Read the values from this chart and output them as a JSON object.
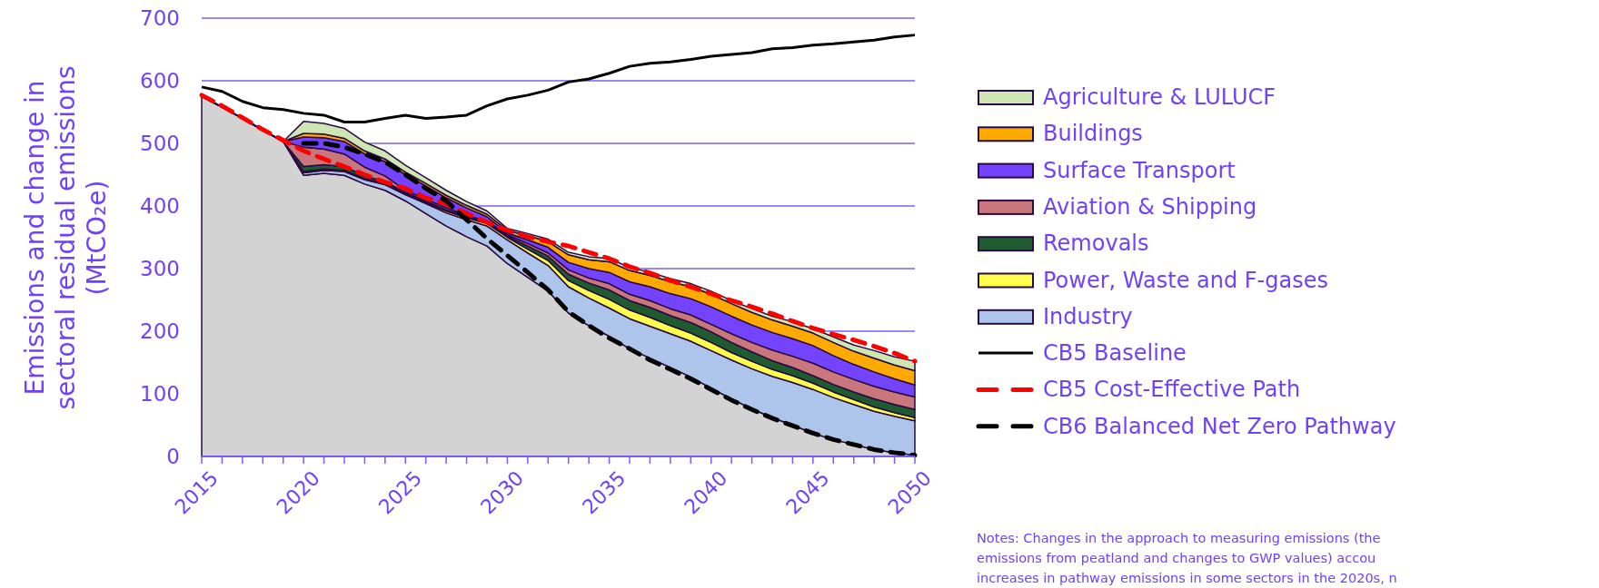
{
  "chart_data": {
    "type": "area",
    "stacked": true,
    "ylabel": "Emissions and change in\nsectoral residual emissions\n(MtCO₂e)",
    "x": [
      2015,
      2016,
      2017,
      2018,
      2019,
      2020,
      2021,
      2022,
      2023,
      2024,
      2025,
      2026,
      2027,
      2028,
      2029,
      2030,
      2031,
      2032,
      2033,
      2034,
      2035,
      2036,
      2037,
      2038,
      2039,
      2040,
      2041,
      2042,
      2043,
      2044,
      2045,
      2046,
      2047,
      2048,
      2049,
      2050
    ],
    "series": [
      {
        "color": "#d3d3d3",
        "values": [
          575,
          558,
          540,
          521,
          503,
          449,
          452,
          449,
          435,
          425,
          408,
          388,
          368,
          351,
          336,
          308,
          286,
          264,
          229,
          209,
          192,
          172,
          157,
          142,
          127,
          109,
          92,
          76,
          62,
          50,
          37,
          27,
          19,
          11,
          6,
          2
        ]
      },
      {
        "name": "Industry",
        "color": "#adc5eb",
        "values": [
          0,
          0,
          0,
          0,
          0,
          4,
          5,
          6,
          7,
          9,
          10,
          16,
          21,
          27,
          32,
          38,
          39,
          41,
          42,
          44,
          45,
          48,
          51,
          54,
          57,
          60,
          62,
          64,
          66,
          68,
          70,
          67,
          64,
          61,
          58,
          55
        ]
      },
      {
        "name": "Power, Waste and F-gases",
        "color": "#ffff4d",
        "values": [
          0,
          0,
          0,
          0,
          0,
          2,
          2,
          2,
          2,
          2,
          2,
          2,
          3,
          3,
          4,
          4,
          6,
          8,
          10,
          12,
          14,
          14,
          14,
          13,
          13,
          13,
          12,
          12,
          11,
          11,
          10,
          9,
          8,
          7,
          6,
          5
        ]
      },
      {
        "name": "Removals",
        "color": "#1e5b30",
        "values": [
          0,
          0,
          0,
          0,
          0,
          8,
          7,
          6,
          4,
          3,
          2,
          2,
          2,
          2,
          2,
          2,
          5,
          7,
          10,
          12,
          15,
          15,
          16,
          16,
          17,
          17,
          16,
          15,
          14,
          13,
          12,
          12,
          12,
          13,
          13,
          13
        ]
      },
      {
        "name": "Aviation & Shipping",
        "color": "#c9767c",
        "values": [
          0,
          0,
          0,
          0,
          0,
          31,
          25,
          20,
          14,
          9,
          3,
          3,
          3,
          2,
          2,
          2,
          4,
          5,
          7,
          8,
          10,
          10,
          11,
          11,
          12,
          12,
          14,
          15,
          17,
          18,
          20,
          20,
          20,
          20,
          20,
          20
        ]
      },
      {
        "name": "Surface Transport",
        "color": "#7443fd",
        "values": [
          0,
          0,
          0,
          0,
          0,
          16,
          18,
          20,
          21,
          23,
          25,
          21,
          16,
          12,
          7,
          3,
          6,
          9,
          12,
          15,
          18,
          20,
          22,
          24,
          26,
          28,
          28,
          28,
          28,
          28,
          28,
          26,
          24,
          23,
          21,
          19
        ]
      },
      {
        "name": "Buildings",
        "color": "#ffaa00",
        "values": [
          0,
          0,
          0,
          0,
          0,
          6,
          6,
          5,
          5,
          4,
          4,
          4,
          4,
          4,
          4,
          4,
          7,
          9,
          12,
          14,
          17,
          18,
          18,
          19,
          19,
          20,
          20,
          20,
          20,
          20,
          20,
          21,
          21,
          22,
          22,
          23
        ]
      },
      {
        "name": "Agriculture & LULUCF",
        "color": "#cde6b4",
        "values": [
          0,
          0,
          0,
          0,
          0,
          19,
          17,
          16,
          14,
          13,
          11,
          9,
          8,
          6,
          5,
          3,
          3,
          4,
          4,
          5,
          5,
          5,
          5,
          5,
          5,
          5,
          5,
          6,
          6,
          7,
          7,
          9,
          10,
          12,
          13,
          15
        ]
      },
      {
        "name": "CB5 Baseline",
        "type": "line",
        "color": "#000000",
        "line_style": "solid",
        "values": [
          590,
          583,
          567,
          557,
          554,
          548,
          545,
          534,
          534,
          540,
          545,
          540,
          542,
          545,
          560,
          571,
          577,
          585,
          598,
          603,
          612,
          623,
          628,
          630,
          634,
          639,
          642,
          645,
          651,
          653,
          657,
          659,
          662,
          665,
          670,
          673
        ]
      },
      {
        "name": "CB5 Cost-Effective Path",
        "type": "line",
        "color": "#ff0000",
        "line_style": "dashed",
        "values": [
          577,
          560,
          541,
          522,
          505,
          488,
          475,
          463,
          450,
          438,
          428,
          413,
          403,
          388,
          374,
          361,
          351,
          343,
          336,
          326,
          316,
          303,
          293,
          281,
          271,
          260,
          249,
          239,
          228,
          216,
          205,
          195,
          186,
          176,
          165,
          152
        ]
      },
      {
        "name": "CB6 Balanced Net Zero Pathway",
        "type": "line",
        "color": "#000000",
        "line_style": "dashed",
        "x": [
          2020,
          2021,
          2022,
          2023,
          2024,
          2025,
          2026,
          2027,
          2028,
          2029,
          2030,
          2031,
          2032,
          2033,
          2034,
          2035,
          2036,
          2037,
          2038,
          2039,
          2040,
          2041,
          2042,
          2043,
          2044,
          2045,
          2046,
          2047,
          2048,
          2049,
          2050
        ],
        "values": [
          500,
          500,
          494,
          483,
          470,
          450,
          428,
          408,
          378,
          348,
          321,
          294,
          266,
          231,
          209,
          189,
          172,
          154,
          139,
          124,
          107,
          90,
          75,
          61,
          49,
          37,
          27,
          19,
          11,
          6,
          2
        ]
      }
    ],
    "xlim": [
      2015,
      2050
    ],
    "xticks": [
      2015,
      {
        "value": 2016,
        "label": null
      },
      {
        "value": 2017,
        "label": null
      },
      {
        "value": 2018,
        "label": null
      },
      {
        "value": 2019,
        "label": null
      },
      2020,
      {
        "value": 2021,
        "label": null
      },
      {
        "value": 2022,
        "label": null
      },
      {
        "value": 2023,
        "label": null
      },
      {
        "value": 2024,
        "label": null
      },
      2025,
      {
        "value": 2026,
        "label": null
      },
      {
        "value": 2027,
        "label": null
      },
      {
        "value": 2028,
        "label": null
      },
      {
        "value": 2029,
        "label": null
      },
      2030,
      {
        "value": 2031,
        "label": null
      },
      {
        "value": 2032,
        "label": null
      },
      {
        "value": 2033,
        "label": null
      },
      {
        "value": 2034,
        "label": null
      },
      2035,
      {
        "value": 2036,
        "label": null
      },
      {
        "value": 2037,
        "label": null
      },
      {
        "value": 2038,
        "label": null
      },
      {
        "value": 2039,
        "label": null
      },
      2040,
      {
        "value": 2041,
        "label": null
      },
      {
        "value": 2042,
        "label": null
      },
      {
        "value": 2043,
        "label": null
      },
      {
        "value": 2044,
        "label": null
      },
      2045,
      {
        "value": 2046,
        "label": null
      },
      {
        "value": 2047,
        "label": null
      },
      {
        "value": 2048,
        "label": null
      },
      {
        "value": 2049,
        "label": null
      },
      2050
    ],
    "ylim": [
      0,
      700
    ],
    "yticks": [
      0,
      100,
      200,
      300,
      400,
      500,
      600,
      700
    ],
    "grid": "y",
    "legend": "right",
    "annotations": [
      "Notes: Changes in the approach to measuring emissions (the",
      "emissions from peatland and changes to GWP values) accou",
      "increases in pathway emissions in some sectors in the 2020s, n"
    ]
  }
}
